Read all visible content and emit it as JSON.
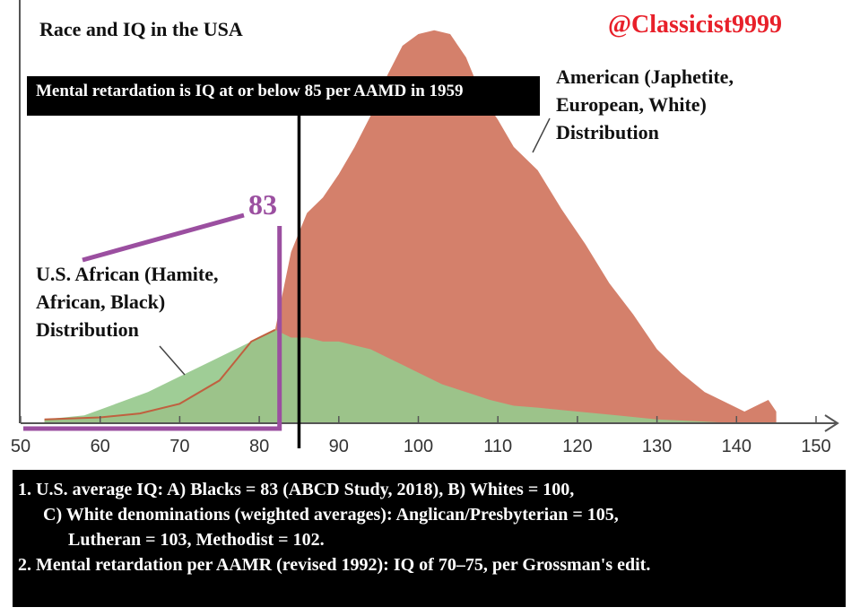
{
  "title": "Race and IQ in the USA",
  "handle": "@Classicist9999",
  "note_box": "Mental retardation is IQ at or below 85 per AAMD in 1959",
  "marker_label": "83",
  "labels": {
    "white": [
      "American (Japhetite,",
      "European, White)",
      "Distribution"
    ],
    "black": [
      "U.S. African (Hamite,",
      "African, Black)",
      "Distribution"
    ]
  },
  "footnotes": [
    "1. U.S. average IQ: A) Blacks = 83 (ABCD Study, 2018), B) Whites = 100,",
    "C) White denominations (weighted averages): Anglican/Presbyterian = 105,",
    "Lutheran = 103, Methodist = 102.",
    "2. Mental retardation per AAMR (revised 1992): IQ of 70–75, per Grossman's edit."
  ],
  "colors": {
    "white_fill": "#d4806b",
    "black_fill": "#97c98d",
    "black_line": "#c0603f",
    "marker": "#9b4fa0",
    "threshold": "#000000",
    "handle": "#e8202a"
  },
  "chart_data": {
    "type": "area",
    "xlim": [
      50,
      150
    ],
    "ylim": [
      0,
      100
    ],
    "x_ticks": [
      50,
      60,
      70,
      80,
      90,
      100,
      110,
      120,
      130,
      140,
      150
    ],
    "threshold_x": 85,
    "marker_x": 83,
    "series": [
      {
        "name": "American (Japhetite, European, White) Distribution",
        "x": [
          53,
          60,
          65,
          70,
          75,
          79,
          82,
          84,
          86,
          88,
          90,
          92,
          94,
          96,
          98,
          100,
          102,
          104,
          106,
          108,
          110,
          112,
          115,
          118,
          121,
          124,
          127,
          130,
          133,
          136,
          139,
          141,
          143,
          144,
          145
        ],
        "y": [
          1,
          1.5,
          2.5,
          5,
          11,
          21,
          24,
          44,
          54,
          58,
          64,
          71,
          79,
          89,
          97,
          100,
          101,
          100,
          94,
          84,
          78,
          71,
          65,
          55,
          46,
          36,
          28,
          19,
          13,
          8,
          5,
          3,
          5,
          6,
          3
        ]
      },
      {
        "name": "U.S. African (Hamite, African, Black) Distribution",
        "x": [
          53,
          58,
          62,
          66,
          70,
          74,
          78,
          80,
          82,
          84,
          86,
          88,
          90,
          92,
          94,
          96,
          98,
          100,
          103,
          106,
          109,
          112,
          115,
          120,
          125,
          130,
          135,
          140
        ],
        "y": [
          1,
          2,
          5,
          8,
          12,
          16,
          20,
          22,
          24,
          22,
          22,
          21,
          21,
          20,
          19,
          17,
          15,
          13,
          10,
          8,
          6,
          4.5,
          4,
          3,
          2,
          1,
          0.5,
          0
        ]
      }
    ]
  }
}
